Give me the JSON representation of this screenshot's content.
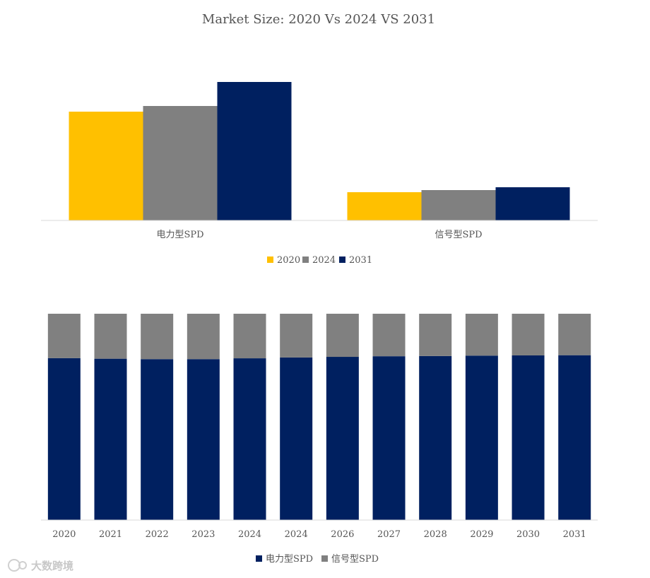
{
  "chart_data": [
    {
      "type": "bar",
      "title": "Market Size: 2020 Vs 2024 VS 2031",
      "categories": [
        "电力型SPD",
        "信号型SPD"
      ],
      "series": [
        {
          "name": "2020",
          "values": [
            77,
            20
          ]
        },
        {
          "name": "2024",
          "values": [
            81,
            21.5
          ]
        },
        {
          "name": "2031",
          "values": [
            98,
            23.5
          ]
        }
      ],
      "ylim": [
        0,
        100
      ],
      "grid": false,
      "legend": "bottom"
    },
    {
      "type": "bar",
      "stacked": "percent",
      "title": "",
      "categories": [
        "2020",
        "2021",
        "2022",
        "2023",
        "2024",
        "2024",
        "2026",
        "2027",
        "2028",
        "2029",
        "2030",
        "2031"
      ],
      "series": [
        {
          "name": "电力型SPD",
          "values": [
            78.5,
            78.2,
            78.0,
            78.0,
            78.4,
            78.8,
            79.1,
            79.4,
            79.5,
            79.7,
            79.8,
            79.9
          ]
        },
        {
          "name": "信号型SPD",
          "values": [
            21.5,
            21.8,
            22.0,
            22.0,
            21.6,
            21.2,
            20.9,
            20.6,
            20.5,
            20.3,
            20.2,
            20.1
          ]
        }
      ],
      "ylim": [
        0,
        100
      ],
      "grid": false,
      "legend": "bottom"
    }
  ],
  "colors": {
    "2020": "#FFC000",
    "2024": "#808080",
    "2031": "#002060",
    "电力型SPD": "#002060",
    "信号型SPD": "#808080"
  },
  "watermark": "大数跨境"
}
